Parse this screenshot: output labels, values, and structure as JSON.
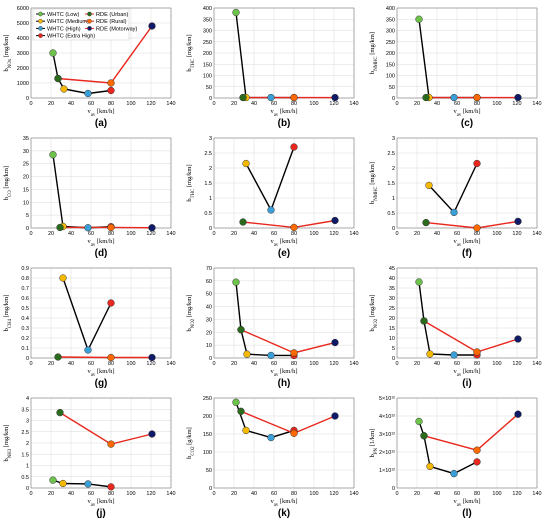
{
  "legend": [
    {
      "label": "WHTC (Low)",
      "color": "#6cc24a"
    },
    {
      "label": "WHTC (Medium)",
      "color": "#f5b800"
    },
    {
      "label": "WHTC (High)",
      "color": "#3a9fd6"
    },
    {
      "label": "WHTC (Extra High)",
      "color": "#e8281e"
    },
    {
      "label": "RDE (Urban)",
      "color": "#2a6b1c"
    },
    {
      "label": "RDE (Rural)",
      "color": "#ff6a00"
    },
    {
      "label": "RDE (Motorway)",
      "color": "#101a66"
    }
  ],
  "line_colors": {
    "whtc": "#000000",
    "rde": "#e8281e"
  },
  "chart_data": [
    {
      "type": "line",
      "panel": "(a)",
      "ylabel": "b_NOx [mg/km]",
      "xlabel": "v_av [km/h]",
      "xlim": [
        0,
        140
      ],
      "xticks": [
        0,
        20,
        40,
        60,
        80,
        100,
        120,
        140
      ],
      "ylim": [
        0,
        6000
      ],
      "yticks": [
        0,
        1000,
        2000,
        3000,
        4000,
        5000,
        6000
      ],
      "series": [
        {
          "line": "whtc",
          "points": [
            [
              22,
              3000,
              "#6cc24a"
            ],
            [
              27,
              1300,
              "#2a6b1c"
            ],
            [
              33,
              600,
              "#f5b800"
            ],
            [
              57,
              300,
              "#3a9fd6"
            ],
            [
              80,
              500,
              "#e8281e"
            ]
          ]
        },
        {
          "line": "rde",
          "points": [
            [
              27,
              1300,
              "#2a6b1c"
            ],
            [
              80,
              1000,
              "#ff6a00"
            ],
            [
              121,
              4800,
              "#101a66"
            ]
          ]
        }
      ]
    },
    {
      "type": "line",
      "panel": "(b)",
      "ylabel": "b_THC [mg/km]",
      "xlabel": "v_av [km/h]",
      "xlim": [
        0,
        140
      ],
      "xticks": [
        0,
        20,
        40,
        60,
        80,
        100,
        120,
        140
      ],
      "ylim": [
        0,
        400
      ],
      "yticks": [
        0,
        50,
        100,
        150,
        200,
        250,
        300,
        350,
        400
      ],
      "series": [
        {
          "line": "whtc",
          "points": [
            [
              22,
              380,
              "#6cc24a"
            ],
            [
              32,
              2,
              "#f5b800"
            ],
            [
              57,
              2,
              "#3a9fd6"
            ],
            [
              80,
              2,
              "#e8281e"
            ]
          ]
        },
        {
          "line": "rde",
          "points": [
            [
              29,
              2,
              "#2a6b1c"
            ],
            [
              80,
              2,
              "#ff6a00"
            ],
            [
              121,
              2,
              "#101a66"
            ]
          ]
        }
      ]
    },
    {
      "type": "line",
      "panel": "(c)",
      "ylabel": "b_NMHC [mg/km]",
      "xlabel": "v_av [km/h]",
      "xlim": [
        0,
        140
      ],
      "xticks": [
        0,
        20,
        40,
        60,
        80,
        100,
        120,
        140
      ],
      "ylim": [
        0,
        400
      ],
      "yticks": [
        0,
        50,
        100,
        150,
        200,
        250,
        300,
        350,
        400
      ],
      "series": [
        {
          "line": "whtc",
          "points": [
            [
              22,
              350,
              "#6cc24a"
            ],
            [
              32,
              2,
              "#f5b800"
            ],
            [
              57,
              2,
              "#3a9fd6"
            ],
            [
              80,
              2,
              "#e8281e"
            ]
          ]
        },
        {
          "line": "rde",
          "points": [
            [
              29,
              2,
              "#2a6b1c"
            ],
            [
              80,
              2,
              "#ff6a00"
            ],
            [
              121,
              2,
              "#101a66"
            ]
          ]
        }
      ]
    },
    {
      "type": "line",
      "panel": "(d)",
      "ylabel": "b_CO [mg/km]",
      "xlabel": "v_av [km/h]",
      "xlim": [
        0,
        140
      ],
      "xticks": [
        0,
        20,
        40,
        60,
        80,
        100,
        120,
        140
      ],
      "ylim": [
        0,
        35
      ],
      "yticks": [
        0,
        5,
        10,
        15,
        20,
        25,
        30,
        35
      ],
      "series": [
        {
          "line": "whtc",
          "points": [
            [
              22,
              28.5,
              "#6cc24a"
            ],
            [
              32,
              0.6,
              "#f5b800"
            ],
            [
              57,
              0.1,
              "#3a9fd6"
            ],
            [
              80,
              0.5,
              "#e8281e"
            ]
          ]
        },
        {
          "line": "rde",
          "points": [
            [
              29,
              0.2,
              "#2a6b1c"
            ],
            [
              80,
              0.2,
              "#ff6a00"
            ],
            [
              121,
              0.1,
              "#101a66"
            ]
          ]
        }
      ]
    },
    {
      "type": "line",
      "panel": "(e)",
      "ylabel": "b_THC [mg/km]",
      "xlabel": "v_av [km/h]",
      "xlim": [
        0,
        140
      ],
      "xticks": [
        0,
        20,
        40,
        60,
        80,
        100,
        120,
        140
      ],
      "ylim": [
        0,
        3.0
      ],
      "yticks": [
        0,
        0.5,
        1.0,
        1.5,
        2.0,
        2.5,
        3.0
      ],
      "series": [
        {
          "line": "whtc",
          "points": [
            [
              32,
              2.15,
              "#f5b800"
            ],
            [
              57,
              0.6,
              "#3a9fd6"
            ],
            [
              80,
              2.7,
              "#e8281e"
            ]
          ]
        },
        {
          "line": "rde",
          "points": [
            [
              29,
              0.2,
              "#2a6b1c"
            ],
            [
              80,
              0.02,
              "#ff6a00"
            ],
            [
              121,
              0.25,
              "#101a66"
            ]
          ]
        }
      ]
    },
    {
      "type": "line",
      "panel": "(f)",
      "ylabel": "b_NMHC [mg/km]",
      "xlabel": "v_av [km/h]",
      "xlim": [
        0,
        140
      ],
      "xticks": [
        0,
        20,
        40,
        60,
        80,
        100,
        120,
        140
      ],
      "ylim": [
        0,
        3.0
      ],
      "yticks": [
        0,
        0.5,
        1.0,
        1.5,
        2.0,
        2.5,
        3.0
      ],
      "series": [
        {
          "line": "whtc",
          "points": [
            [
              32,
              1.42,
              "#f5b800"
            ],
            [
              57,
              0.52,
              "#3a9fd6"
            ],
            [
              80,
              2.15,
              "#e8281e"
            ]
          ]
        },
        {
          "line": "rde",
          "points": [
            [
              29,
              0.18,
              "#2a6b1c"
            ],
            [
              80,
              0.0,
              "#ff6a00"
            ],
            [
              121,
              0.22,
              "#101a66"
            ]
          ]
        }
      ]
    },
    {
      "type": "line",
      "panel": "(g)",
      "ylabel": "b_CH4 [mg/km]",
      "xlabel": "v_av [km/h]",
      "xlim": [
        0,
        140
      ],
      "xticks": [
        0,
        20,
        40,
        60,
        80,
        100,
        120,
        140
      ],
      "ylim": [
        0,
        0.9
      ],
      "yticks": [
        0,
        0.1,
        0.2,
        0.3,
        0.4,
        0.5,
        0.6,
        0.7,
        0.8,
        0.9
      ],
      "series": [
        {
          "line": "whtc",
          "points": [
            [
              32,
              0.8,
              "#f5b800"
            ],
            [
              57,
              0.08,
              "#3a9fd6"
            ],
            [
              80,
              0.55,
              "#e8281e"
            ]
          ]
        },
        {
          "line": "rde",
          "points": [
            [
              27,
              0.01,
              "#2a6b1c"
            ],
            [
              80,
              0.005,
              "#ff6a00"
            ],
            [
              121,
              0.005,
              "#101a66"
            ]
          ]
        }
      ]
    },
    {
      "type": "line",
      "panel": "(h)",
      "ylabel": "b_NO2 [mg/km]",
      "xlabel": "v_av [km/h]",
      "xlim": [
        0,
        140
      ],
      "xticks": [
        0,
        20,
        40,
        60,
        80,
        100,
        120,
        140
      ],
      "ylim": [
        0,
        70
      ],
      "yticks": [
        0,
        10,
        20,
        30,
        40,
        50,
        60,
        70
      ],
      "series": [
        {
          "line": "whtc",
          "points": [
            [
              22,
              59,
              "#6cc24a"
            ],
            [
              27,
              22,
              "#2a6b1c"
            ],
            [
              33,
              3,
              "#f5b800"
            ],
            [
              57,
              2,
              "#3a9fd6"
            ],
            [
              80,
              2,
              "#e8281e"
            ]
          ]
        },
        {
          "line": "rde",
          "points": [
            [
              27,
              22,
              "#2a6b1c"
            ],
            [
              80,
              4,
              "#ff6a00"
            ],
            [
              121,
              12,
              "#101a66"
            ]
          ]
        }
      ]
    },
    {
      "type": "line",
      "panel": "(i)",
      "ylabel": "b_NO2 [mg/km]",
      "xlabel": "v_av [km/h]",
      "xlim": [
        0,
        140
      ],
      "xticks": [
        0,
        20,
        40,
        60,
        80,
        100,
        120,
        140
      ],
      "ylim": [
        0,
        45
      ],
      "yticks": [
        0,
        5,
        10,
        15,
        20,
        25,
        30,
        35,
        40,
        45
      ],
      "series": [
        {
          "line": "whtc",
          "points": [
            [
              22,
              38,
              "#6cc24a"
            ],
            [
              27,
              18.5,
              "#2a6b1c"
            ],
            [
              33,
              2,
              "#f5b800"
            ],
            [
              57,
              1.5,
              "#3a9fd6"
            ],
            [
              80,
              1.5,
              "#e8281e"
            ]
          ]
        },
        {
          "line": "rde",
          "points": [
            [
              27,
              18.5,
              "#2a6b1c"
            ],
            [
              80,
              3,
              "#ff6a00"
            ],
            [
              121,
              9.5,
              "#101a66"
            ]
          ]
        }
      ]
    },
    {
      "type": "line",
      "panel": "(j)",
      "ylabel": "b_NH3 [mg/km]",
      "xlabel": "v_av [km/h]",
      "xlim": [
        0,
        140
      ],
      "xticks": [
        0,
        20,
        40,
        60,
        80,
        100,
        120,
        140
      ],
      "ylim": [
        0,
        4.0
      ],
      "yticks": [
        0,
        0.5,
        1.0,
        1.5,
        2.0,
        2.5,
        3.0,
        3.5,
        4.0
      ],
      "series": [
        {
          "line": "whtc",
          "points": [
            [
              22,
              0.35,
              "#6cc24a"
            ],
            [
              32,
              0.2,
              "#f5b800"
            ],
            [
              57,
              0.18,
              "#3a9fd6"
            ],
            [
              80,
              0.05,
              "#e8281e"
            ]
          ]
        },
        {
          "line": "rde",
          "points": [
            [
              29,
              3.35,
              "#2a6b1c"
            ],
            [
              80,
              1.95,
              "#ff6a00"
            ],
            [
              121,
              2.4,
              "#101a66"
            ]
          ]
        }
      ]
    },
    {
      "type": "line",
      "panel": "(k)",
      "ylabel": "b_CO2 [g/km]",
      "xlabel": "v_av [km/h]",
      "xlim": [
        0,
        140
      ],
      "xticks": [
        0,
        20,
        40,
        60,
        80,
        100,
        120,
        140
      ],
      "ylim": [
        0,
        250
      ],
      "yticks": [
        0,
        50,
        100,
        150,
        200,
        250
      ],
      "series": [
        {
          "line": "whtc",
          "points": [
            [
              22,
              238,
              "#6cc24a"
            ],
            [
              32,
              160,
              "#f5b800"
            ],
            [
              57,
              140,
              "#3a9fd6"
            ],
            [
              80,
              160,
              "#e8281e"
            ]
          ]
        },
        {
          "line": "rde",
          "points": [
            [
              27,
              213,
              "#2a6b1c"
            ],
            [
              80,
              152,
              "#ff6a00"
            ],
            [
              121,
              200,
              "#101a66"
            ]
          ]
        }
      ]
    },
    {
      "type": "line",
      "panel": "(l)",
      "ylabel": "b_PN [1/km]",
      "xlabel": "v_av [km/h]",
      "xlim": [
        0,
        140
      ],
      "xticks": [
        0,
        20,
        40,
        60,
        80,
        100,
        120,
        140
      ],
      "ylim": [
        0,
        5
      ],
      "yticks": [
        0,
        1,
        2,
        3,
        4,
        5
      ],
      "ytick_labels": [
        "0",
        "1×10¹²",
        "2×10¹²",
        "3×10¹²",
        "4×10¹²",
        "5×10¹²"
      ],
      "series": [
        {
          "line": "whtc",
          "points": [
            [
              22,
              3.7,
              "#6cc24a"
            ],
            [
              27,
              2.9,
              "#2a6b1c"
            ],
            [
              33,
              1.2,
              "#f5b800"
            ],
            [
              57,
              0.8,
              "#3a9fd6"
            ],
            [
              80,
              1.45,
              "#e8281e"
            ]
          ]
        },
        {
          "line": "rde",
          "points": [
            [
              27,
              2.9,
              "#2a6b1c"
            ],
            [
              80,
              2.1,
              "#ff6a00"
            ],
            [
              121,
              4.1,
              "#101a66"
            ]
          ]
        }
      ]
    }
  ]
}
